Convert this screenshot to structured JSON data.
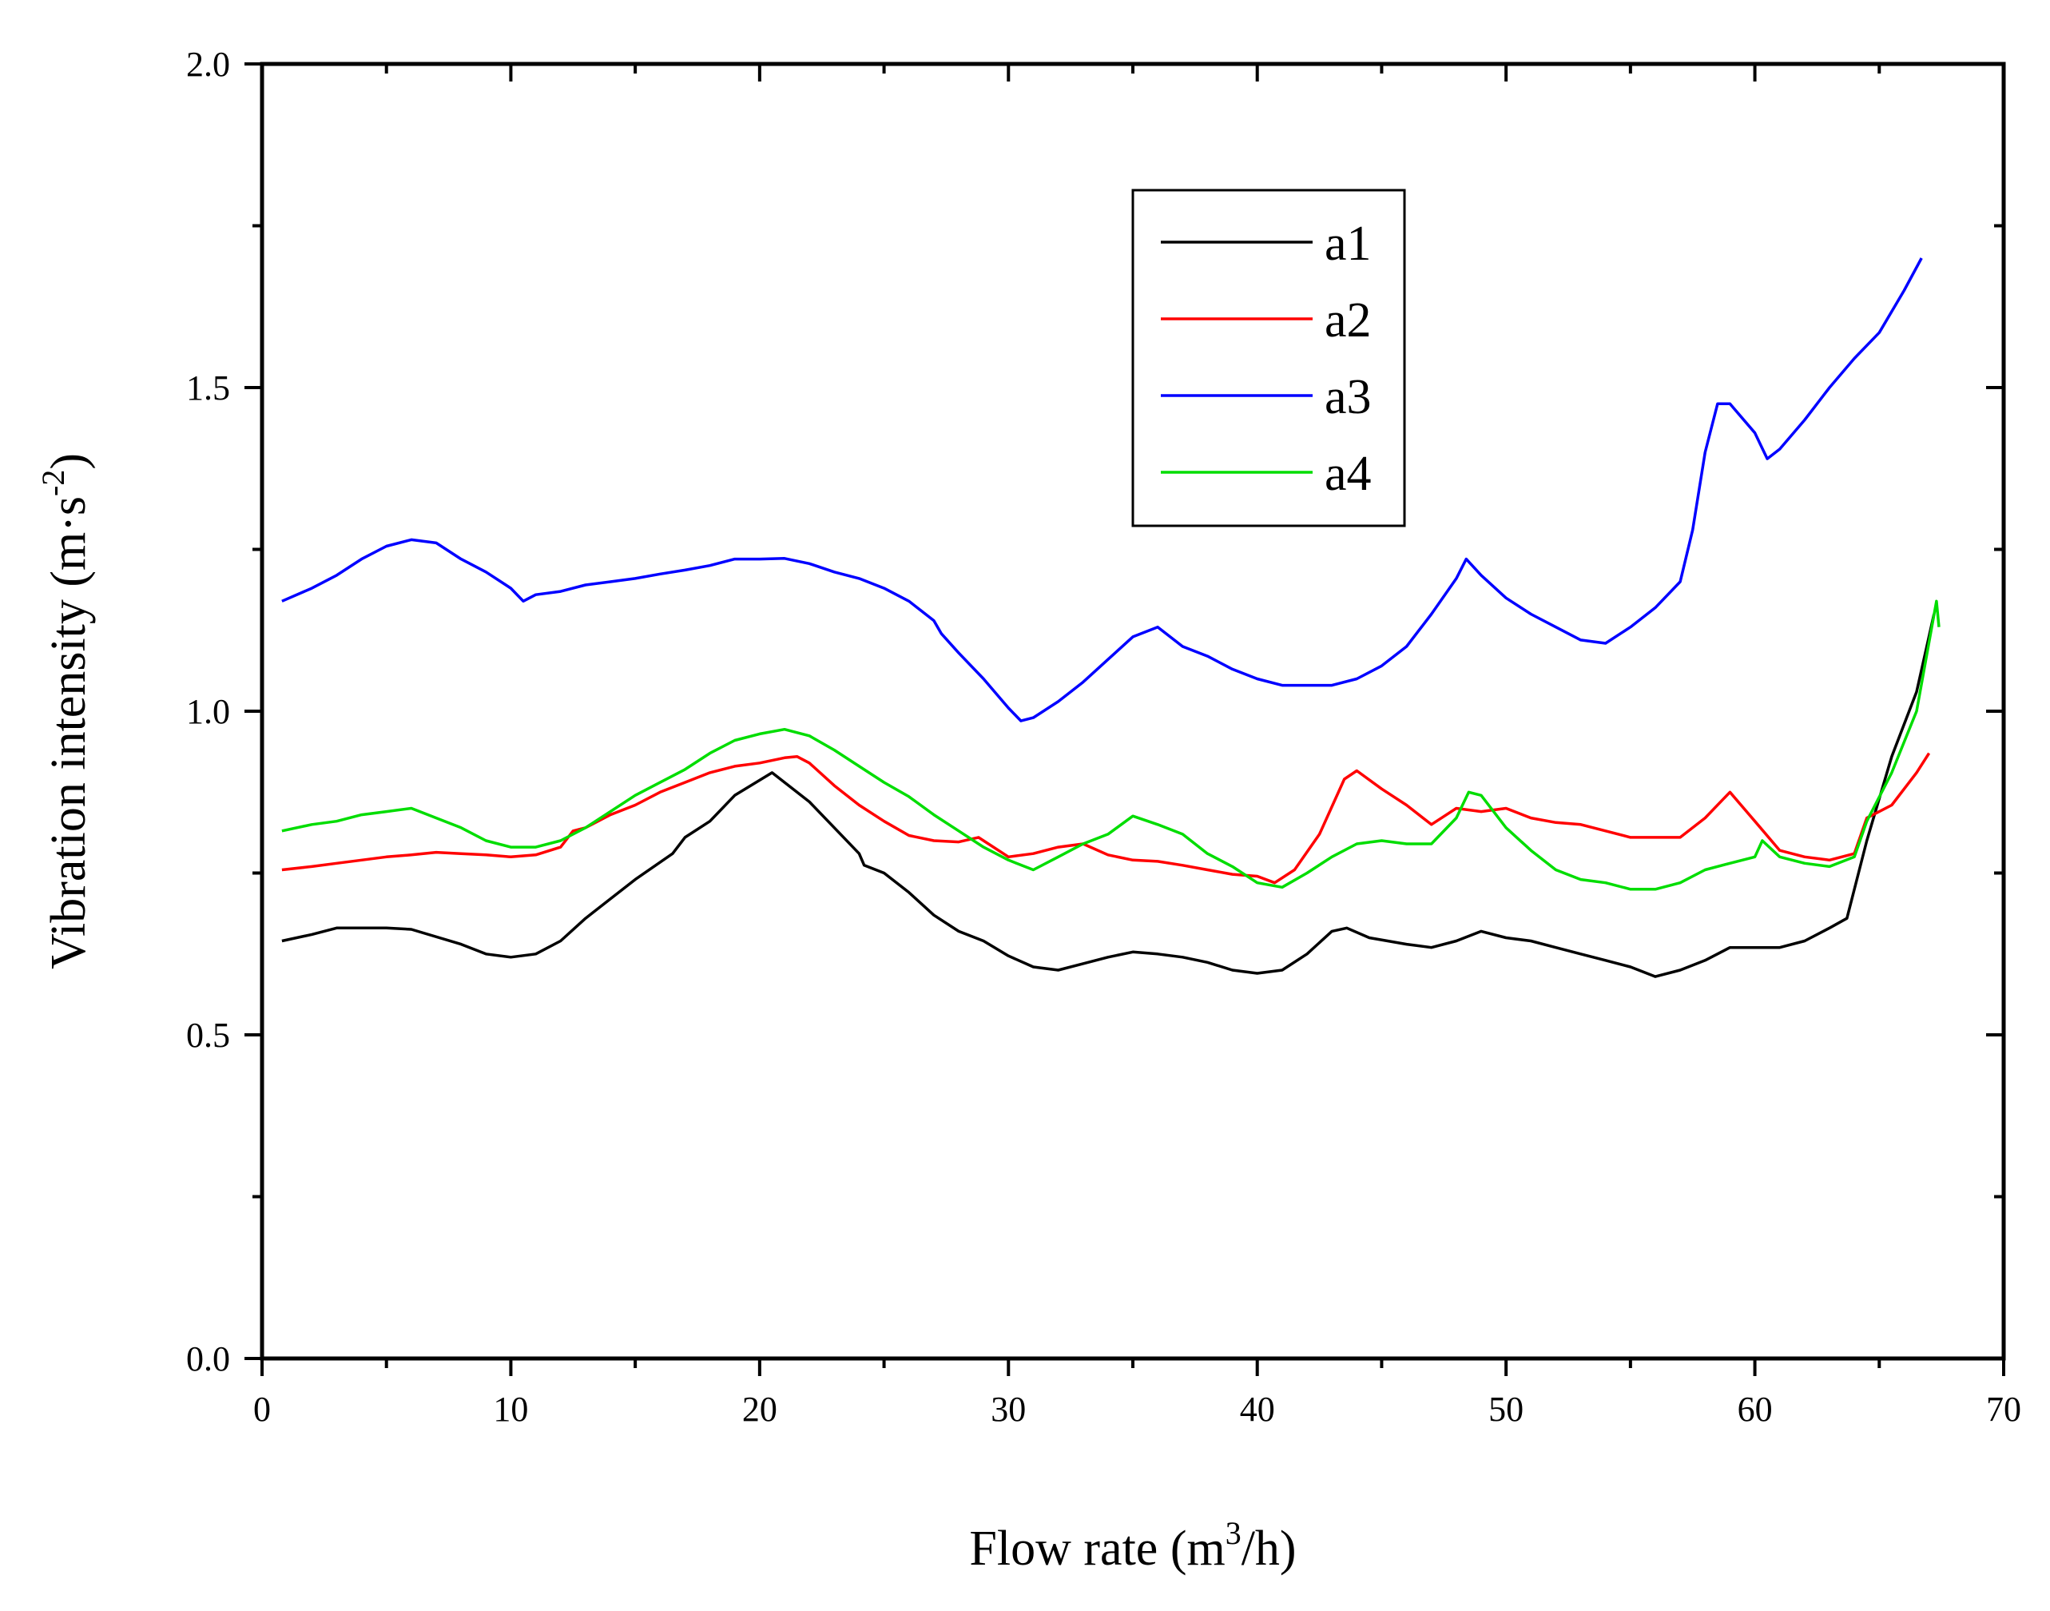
{
  "chart_data": {
    "type": "line",
    "title": "",
    "xlabel_main": "Flow rate (m",
    "xlabel_sup": "3",
    "xlabel_tail": "/h)",
    "ylabel_main": "Vibration intensity (m·s",
    "ylabel_sup": "-2",
    "ylabel_tail": ")",
    "xlim": [
      0,
      70
    ],
    "ylim": [
      0.0,
      2.0
    ],
    "x_ticks": [
      0,
      10,
      20,
      30,
      40,
      50,
      60,
      70
    ],
    "x_tick_labels": [
      "0",
      "10",
      "20",
      "30",
      "40",
      "50",
      "60",
      "70"
    ],
    "y_ticks": [
      0.0,
      0.5,
      1.0,
      1.5,
      2.0
    ],
    "y_tick_labels": [
      "0.0",
      "0.5",
      "1.0",
      "1.5",
      "2.0"
    ],
    "grid": false,
    "legend_position": "top-center",
    "series": [
      {
        "name": "a1",
        "color": "#000000",
        "points": [
          [
            0.8,
            0.645
          ],
          [
            2,
            0.655
          ],
          [
            3,
            0.665
          ],
          [
            5,
            0.665
          ],
          [
            6,
            0.663
          ],
          [
            8,
            0.64
          ],
          [
            9,
            0.625
          ],
          [
            10,
            0.62
          ],
          [
            11,
            0.625
          ],
          [
            12,
            0.645
          ],
          [
            13,
            0.68
          ],
          [
            14,
            0.71
          ],
          [
            15,
            0.74
          ],
          [
            16.5,
            0.78
          ],
          [
            17,
            0.805
          ],
          [
            18,
            0.83
          ],
          [
            19,
            0.87
          ],
          [
            20.5,
            0.905
          ],
          [
            22,
            0.86
          ],
          [
            23,
            0.82
          ],
          [
            24,
            0.78
          ],
          [
            24.2,
            0.762
          ],
          [
            25,
            0.75
          ],
          [
            26,
            0.72
          ],
          [
            27,
            0.685
          ],
          [
            28,
            0.66
          ],
          [
            29,
            0.645
          ],
          [
            30,
            0.622
          ],
          [
            31,
            0.605
          ],
          [
            32,
            0.6
          ],
          [
            33,
            0.61
          ],
          [
            34,
            0.62
          ],
          [
            35,
            0.628
          ],
          [
            36,
            0.625
          ],
          [
            37,
            0.62
          ],
          [
            38,
            0.612
          ],
          [
            39,
            0.6
          ],
          [
            40,
            0.595
          ],
          [
            41,
            0.6
          ],
          [
            42,
            0.625
          ],
          [
            43,
            0.66
          ],
          [
            43.6,
            0.665
          ],
          [
            44.5,
            0.65
          ],
          [
            46,
            0.64
          ],
          [
            47,
            0.635
          ],
          [
            48,
            0.645
          ],
          [
            49,
            0.66
          ],
          [
            50,
            0.65
          ],
          [
            51,
            0.645
          ],
          [
            52,
            0.635
          ],
          [
            53,
            0.625
          ],
          [
            54,
            0.615
          ],
          [
            55,
            0.605
          ],
          [
            56,
            0.59
          ],
          [
            57,
            0.6
          ],
          [
            58,
            0.615
          ],
          [
            59,
            0.635
          ],
          [
            60,
            0.635
          ],
          [
            61,
            0.635
          ],
          [
            62,
            0.645
          ],
          [
            63,
            0.665
          ],
          [
            63.7,
            0.68
          ],
          [
            64.5,
            0.8
          ],
          [
            65.5,
            0.93
          ],
          [
            66.5,
            1.03
          ],
          [
            67.2,
            1.15
          ]
        ]
      },
      {
        "name": "a2",
        "color": "#ff0000",
        "points": [
          [
            0.8,
            0.755
          ],
          [
            2,
            0.76
          ],
          [
            3,
            0.765
          ],
          [
            4,
            0.77
          ],
          [
            5,
            0.775
          ],
          [
            6,
            0.778
          ],
          [
            7,
            0.782
          ],
          [
            8,
            0.78
          ],
          [
            9,
            0.778
          ],
          [
            10,
            0.775
          ],
          [
            11,
            0.778
          ],
          [
            12,
            0.79
          ],
          [
            12.5,
            0.815
          ],
          [
            13,
            0.82
          ],
          [
            14,
            0.84
          ],
          [
            15,
            0.855
          ],
          [
            16,
            0.875
          ],
          [
            17,
            0.89
          ],
          [
            18,
            0.905
          ],
          [
            19,
            0.915
          ],
          [
            20,
            0.92
          ],
          [
            21,
            0.928
          ],
          [
            21.5,
            0.93
          ],
          [
            22,
            0.92
          ],
          [
            23,
            0.885
          ],
          [
            24,
            0.855
          ],
          [
            25,
            0.83
          ],
          [
            26,
            0.808
          ],
          [
            27,
            0.8
          ],
          [
            28,
            0.798
          ],
          [
            28.8,
            0.805
          ],
          [
            29,
            0.8
          ],
          [
            30,
            0.775
          ],
          [
            31,
            0.78
          ],
          [
            32,
            0.79
          ],
          [
            33,
            0.795
          ],
          [
            34,
            0.778
          ],
          [
            35,
            0.77
          ],
          [
            36,
            0.768
          ],
          [
            37,
            0.762
          ],
          [
            38,
            0.755
          ],
          [
            39,
            0.748
          ],
          [
            40,
            0.745
          ],
          [
            40.7,
            0.735
          ],
          [
            41.5,
            0.755
          ],
          [
            42.5,
            0.81
          ],
          [
            43.5,
            0.895
          ],
          [
            44,
            0.908
          ],
          [
            45,
            0.88
          ],
          [
            46,
            0.855
          ],
          [
            47,
            0.825
          ],
          [
            48,
            0.85
          ],
          [
            49,
            0.845
          ],
          [
            50,
            0.85
          ],
          [
            51,
            0.835
          ],
          [
            52,
            0.828
          ],
          [
            53,
            0.825
          ],
          [
            54,
            0.815
          ],
          [
            55,
            0.805
          ],
          [
            56,
            0.805
          ],
          [
            57,
            0.805
          ],
          [
            58,
            0.835
          ],
          [
            59,
            0.875
          ],
          [
            60,
            0.83
          ],
          [
            61,
            0.785
          ],
          [
            62,
            0.775
          ],
          [
            63,
            0.77
          ],
          [
            64,
            0.78
          ],
          [
            64.5,
            0.835
          ],
          [
            65.5,
            0.855
          ],
          [
            66.5,
            0.905
          ],
          [
            67,
            0.935
          ]
        ]
      },
      {
        "name": "a3",
        "color": "#0000ff",
        "points": [
          [
            0.8,
            1.17
          ],
          [
            2,
            1.19
          ],
          [
            3,
            1.21
          ],
          [
            4,
            1.235
          ],
          [
            5,
            1.255
          ],
          [
            6,
            1.265
          ],
          [
            7,
            1.26
          ],
          [
            8,
            1.235
          ],
          [
            9,
            1.215
          ],
          [
            10,
            1.19
          ],
          [
            10.5,
            1.17
          ],
          [
            11,
            1.18
          ],
          [
            12,
            1.185
          ],
          [
            13,
            1.195
          ],
          [
            14,
            1.2
          ],
          [
            15,
            1.205
          ],
          [
            16,
            1.212
          ],
          [
            17,
            1.218
          ],
          [
            18,
            1.225
          ],
          [
            19,
            1.235
          ],
          [
            20,
            1.235
          ],
          [
            21,
            1.236
          ],
          [
            22,
            1.228
          ],
          [
            23,
            1.215
          ],
          [
            24,
            1.205
          ],
          [
            25,
            1.19
          ],
          [
            26,
            1.17
          ],
          [
            27,
            1.14
          ],
          [
            27.3,
            1.12
          ],
          [
            28,
            1.09
          ],
          [
            29,
            1.05
          ],
          [
            30,
            1.005
          ],
          [
            30.5,
            0.985
          ],
          [
            31,
            0.99
          ],
          [
            32,
            1.015
          ],
          [
            33,
            1.045
          ],
          [
            34,
            1.08
          ],
          [
            35,
            1.115
          ],
          [
            36,
            1.13
          ],
          [
            37,
            1.1
          ],
          [
            38,
            1.085
          ],
          [
            39,
            1.065
          ],
          [
            40,
            1.05
          ],
          [
            41,
            1.04
          ],
          [
            42,
            1.04
          ],
          [
            43,
            1.04
          ],
          [
            44,
            1.05
          ],
          [
            45,
            1.07
          ],
          [
            46,
            1.1
          ],
          [
            47,
            1.15
          ],
          [
            48,
            1.205
          ],
          [
            48.4,
            1.235
          ],
          [
            49,
            1.21
          ],
          [
            50,
            1.175
          ],
          [
            51,
            1.15
          ],
          [
            52,
            1.13
          ],
          [
            53,
            1.11
          ],
          [
            54,
            1.105
          ],
          [
            55,
            1.13
          ],
          [
            56,
            1.16
          ],
          [
            57,
            1.2
          ],
          [
            57.5,
            1.28
          ],
          [
            58,
            1.4
          ],
          [
            58.5,
            1.475
          ],
          [
            59,
            1.475
          ],
          [
            60,
            1.43
          ],
          [
            60.5,
            1.39
          ],
          [
            61,
            1.405
          ],
          [
            62,
            1.45
          ],
          [
            63,
            1.5
          ],
          [
            64,
            1.545
          ],
          [
            65,
            1.585
          ],
          [
            66,
            1.65
          ],
          [
            66.7,
            1.7
          ]
        ]
      },
      {
        "name": "a4",
        "color": "#00dd00",
        "points": [
          [
            0.8,
            0.815
          ],
          [
            2,
            0.825
          ],
          [
            3,
            0.83
          ],
          [
            4,
            0.84
          ],
          [
            5,
            0.845
          ],
          [
            6,
            0.85
          ],
          [
            7,
            0.835
          ],
          [
            8,
            0.82
          ],
          [
            9,
            0.8
          ],
          [
            10,
            0.79
          ],
          [
            11,
            0.79
          ],
          [
            12,
            0.8
          ],
          [
            13,
            0.82
          ],
          [
            14,
            0.845
          ],
          [
            15,
            0.87
          ],
          [
            16,
            0.89
          ],
          [
            17,
            0.91
          ],
          [
            18,
            0.935
          ],
          [
            19,
            0.955
          ],
          [
            20,
            0.965
          ],
          [
            21,
            0.972
          ],
          [
            22,
            0.962
          ],
          [
            23,
            0.94
          ],
          [
            24,
            0.915
          ],
          [
            25,
            0.89
          ],
          [
            26,
            0.868
          ],
          [
            27,
            0.84
          ],
          [
            28,
            0.815
          ],
          [
            29,
            0.79
          ],
          [
            30,
            0.77
          ],
          [
            31,
            0.755
          ],
          [
            32,
            0.775
          ],
          [
            33,
            0.795
          ],
          [
            34,
            0.81
          ],
          [
            35,
            0.838
          ],
          [
            36,
            0.825
          ],
          [
            37,
            0.81
          ],
          [
            38,
            0.78
          ],
          [
            39,
            0.76
          ],
          [
            40,
            0.735
          ],
          [
            41,
            0.728
          ],
          [
            42,
            0.75
          ],
          [
            43,
            0.775
          ],
          [
            44,
            0.795
          ],
          [
            45,
            0.8
          ],
          [
            46,
            0.795
          ],
          [
            47,
            0.795
          ],
          [
            48,
            0.835
          ],
          [
            48.5,
            0.875
          ],
          [
            49,
            0.87
          ],
          [
            50,
            0.82
          ],
          [
            51,
            0.785
          ],
          [
            52,
            0.755
          ],
          [
            53,
            0.74
          ],
          [
            54,
            0.735
          ],
          [
            55,
            0.725
          ],
          [
            56,
            0.725
          ],
          [
            57,
            0.735
          ],
          [
            58,
            0.755
          ],
          [
            59,
            0.765
          ],
          [
            60,
            0.775
          ],
          [
            60.3,
            0.8
          ],
          [
            61,
            0.775
          ],
          [
            62,
            0.765
          ],
          [
            63,
            0.76
          ],
          [
            64,
            0.775
          ],
          [
            64.5,
            0.83
          ],
          [
            65.5,
            0.905
          ],
          [
            66.5,
            1.0
          ],
          [
            67.3,
            1.17
          ],
          [
            67.4,
            1.13
          ]
        ]
      }
    ]
  }
}
